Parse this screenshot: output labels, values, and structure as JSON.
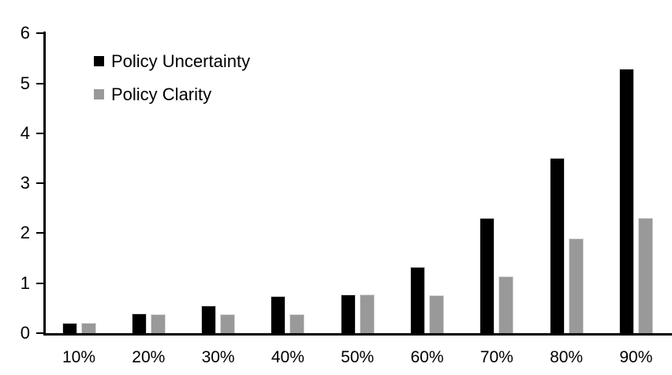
{
  "chart_data": {
    "type": "bar",
    "title": "",
    "xlabel": "",
    "ylabel": "",
    "categories": [
      "10%",
      "20%",
      "30%",
      "40%",
      "50%",
      "60%",
      "70%",
      "80%",
      "90%"
    ],
    "series": [
      {
        "name": "Policy Uncertainty",
        "color": "#000000",
        "values": [
          0.2,
          0.4,
          0.55,
          0.75,
          0.78,
          1.33,
          2.3,
          3.5,
          5.3
        ]
      },
      {
        "name": "Policy Clarity",
        "color": "#999999",
        "values": [
          0.2,
          0.38,
          0.38,
          0.38,
          0.77,
          0.76,
          1.14,
          1.9,
          2.3
        ]
      }
    ],
    "ylim": [
      0,
      6
    ],
    "yticks": [
      0,
      1,
      2,
      3,
      4,
      5,
      6
    ],
    "legend_position": "top-left",
    "grid": false,
    "colors": {
      "axis": "#000000",
      "text": "#000000",
      "bar_outline": "#d9d9d9",
      "background": "#ffffff"
    }
  }
}
